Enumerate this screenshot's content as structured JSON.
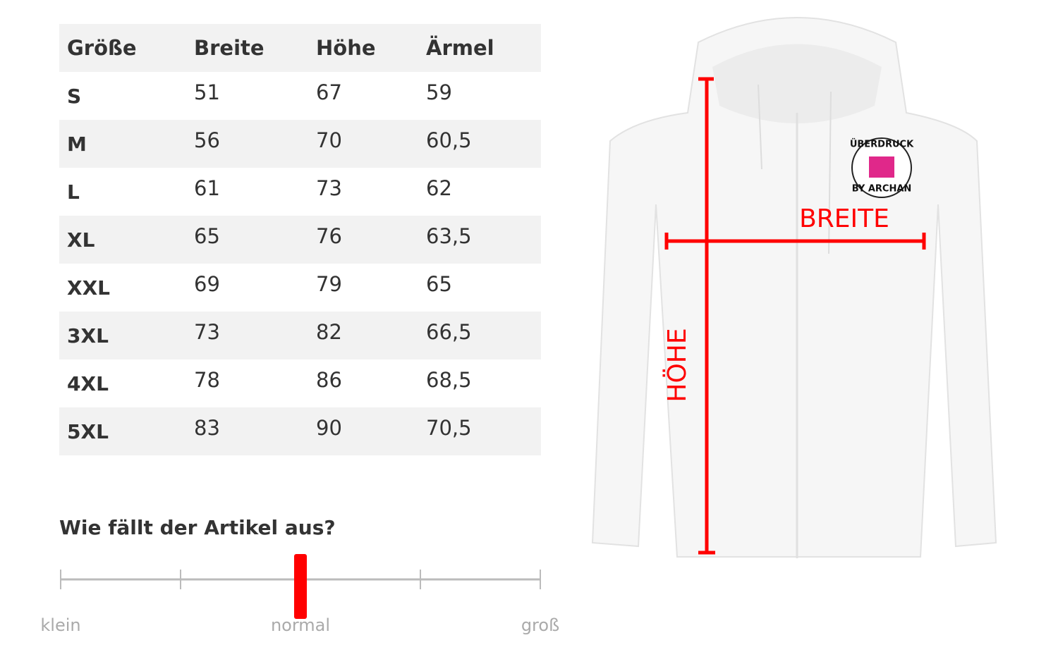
{
  "table": {
    "headers": [
      "Größe",
      "Breite",
      "Höhe",
      "Ärmel"
    ],
    "rows": [
      [
        "S",
        "51",
        "67",
        "59"
      ],
      [
        "M",
        "56",
        "70",
        "60,5"
      ],
      [
        "L",
        "61",
        "73",
        "62"
      ],
      [
        "XL",
        "65",
        "76",
        "63,5"
      ],
      [
        "XXL",
        "69",
        "79",
        "65"
      ],
      [
        "3XL",
        "73",
        "82",
        "66,5"
      ],
      [
        "4XL",
        "78",
        "86",
        "68,5"
      ],
      [
        "5XL",
        "83",
        "90",
        "70,5"
      ]
    ]
  },
  "fit": {
    "question": "Wie fällt der Artikel aus?",
    "labels": [
      "klein",
      "normal",
      "groß"
    ]
  },
  "image": {
    "width_label": "BREITE",
    "height_label": "HÖHE",
    "logo": [
      "ÜBERDRUCK",
      "BY ARCHAN"
    ]
  }
}
